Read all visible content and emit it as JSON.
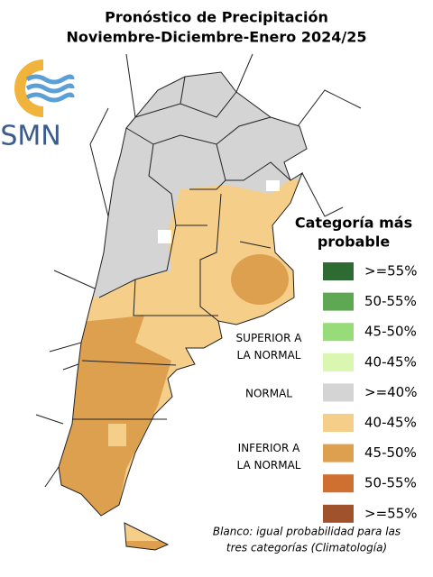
{
  "header": {
    "title_lines": [
      "Pronóstico de Precipitación",
      "Noviembre-Diciembre-Enero 2024/25"
    ]
  },
  "logo": {
    "text": "SMN"
  },
  "legend": {
    "title_lines": [
      "Categoría más",
      "probable"
    ],
    "groups": [
      {
        "label_lines": [
          "SUPERIOR A",
          "LA NORMAL"
        ],
        "items": [
          {
            "label": ">=55%",
            "color": "#2e6b32"
          },
          {
            "label": "50-55%",
            "color": "#5ea854"
          },
          {
            "label": "45-50%",
            "color": "#98dc7a"
          },
          {
            "label": "40-45%",
            "color": "#d9f7b0"
          }
        ]
      },
      {
        "label_lines": [
          "NORMAL"
        ],
        "items": [
          {
            "label": ">=40%",
            "color": "#d4d4d4"
          }
        ]
      },
      {
        "label_lines": [
          "INFERIOR A",
          "LA NORMAL"
        ],
        "items": [
          {
            "label": "40-45%",
            "color": "#f5cf8a"
          },
          {
            "label": "45-50%",
            "color": "#dda04f"
          },
          {
            "label": "50-55%",
            "color": "#d07030"
          },
          {
            "label": ">=55%",
            "color": "#a0522d"
          }
        ]
      }
    ]
  },
  "note_lines": [
    "Blanco: igual probabilidad para las",
    "tres categorías (Climatología)"
  ]
}
